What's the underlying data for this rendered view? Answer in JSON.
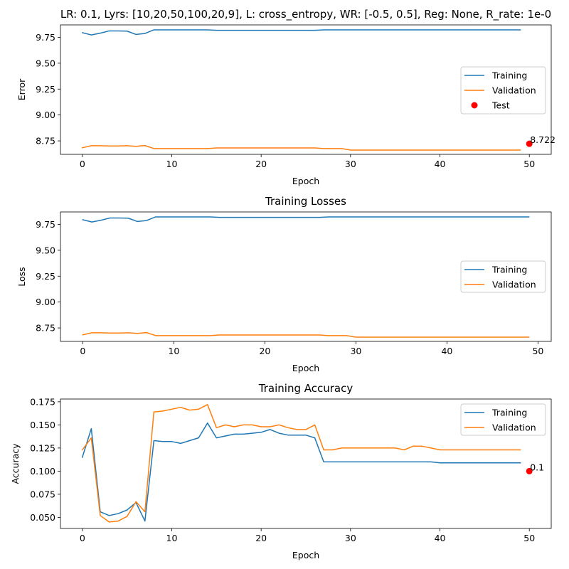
{
  "chart_data": [
    {
      "type": "line",
      "title": "LR: 0.1, Lyrs: [10,20,50,100,20,9], L: cross_entropy, WR: [-0.5, 0.5], Reg: None, R_rate: 1e-0",
      "xlabel": "Epoch",
      "ylabel": "Error",
      "xlim": [
        -2.45,
        52.45
      ],
      "ylim": [
        8.62,
        9.87
      ],
      "xticks": [
        0,
        10,
        20,
        30,
        40,
        50
      ],
      "yticks": [
        8.75,
        9.0,
        9.25,
        9.5,
        9.75
      ],
      "ytick_labels": [
        "8.75",
        "9.00",
        "9.25",
        "9.50",
        "9.75"
      ],
      "legend": "center-right",
      "grid": false,
      "x": [
        0,
        1,
        2,
        3,
        4,
        5,
        6,
        7,
        8,
        9,
        10,
        11,
        12,
        13,
        14,
        15,
        16,
        17,
        18,
        19,
        20,
        21,
        22,
        23,
        24,
        25,
        26,
        27,
        28,
        29,
        30,
        31,
        32,
        33,
        34,
        35,
        36,
        37,
        38,
        39,
        40,
        41,
        42,
        43,
        44,
        45,
        46,
        47,
        48,
        49
      ],
      "series": [
        {
          "name": "Training",
          "color": "#1f77b4",
          "values": [
            9.795,
            9.773,
            9.79,
            9.812,
            9.812,
            9.81,
            9.778,
            9.787,
            9.822,
            9.822,
            9.822,
            9.822,
            9.822,
            9.822,
            9.822,
            9.818,
            9.818,
            9.818,
            9.818,
            9.818,
            9.818,
            9.818,
            9.818,
            9.818,
            9.818,
            9.818,
            9.818,
            9.822,
            9.822,
            9.822,
            9.822,
            9.822,
            9.822,
            9.822,
            9.822,
            9.822,
            9.822,
            9.822,
            9.822,
            9.822,
            9.822,
            9.822,
            9.822,
            9.822,
            9.822,
            9.822,
            9.822,
            9.822,
            9.822,
            9.822
          ]
        },
        {
          "name": "Validation",
          "color": "#ff7f0e",
          "values": [
            8.684,
            8.703,
            8.703,
            8.701,
            8.701,
            8.703,
            8.697,
            8.705,
            8.676,
            8.676,
            8.676,
            8.676,
            8.676,
            8.676,
            8.676,
            8.682,
            8.682,
            8.682,
            8.682,
            8.682,
            8.682,
            8.682,
            8.682,
            8.682,
            8.682,
            8.682,
            8.682,
            8.676,
            8.676,
            8.676,
            8.661,
            8.661,
            8.661,
            8.661,
            8.661,
            8.661,
            8.661,
            8.661,
            8.661,
            8.661,
            8.661,
            8.661,
            8.661,
            8.661,
            8.661,
            8.661,
            8.661,
            8.661,
            8.661,
            8.661
          ]
        }
      ],
      "points": [
        {
          "name": "Test",
          "color": "#ff0000",
          "x": 50,
          "y": 8.722,
          "label": "8.722"
        }
      ]
    },
    {
      "type": "line",
      "title": "Training Losses",
      "xlabel": "Epoch",
      "ylabel": "Loss",
      "xlim": [
        -2.45,
        51.45
      ],
      "ylim": [
        8.62,
        9.87
      ],
      "xticks": [
        0,
        10,
        20,
        30,
        40,
        50
      ],
      "yticks": [
        8.75,
        9.0,
        9.25,
        9.5,
        9.75
      ],
      "ytick_labels": [
        "8.75",
        "9.00",
        "9.25",
        "9.50",
        "9.75"
      ],
      "legend": "center-right",
      "grid": false,
      "x": [
        0,
        1,
        2,
        3,
        4,
        5,
        6,
        7,
        8,
        9,
        10,
        11,
        12,
        13,
        14,
        15,
        16,
        17,
        18,
        19,
        20,
        21,
        22,
        23,
        24,
        25,
        26,
        27,
        28,
        29,
        30,
        31,
        32,
        33,
        34,
        35,
        36,
        37,
        38,
        39,
        40,
        41,
        42,
        43,
        44,
        45,
        46,
        47,
        48,
        49
      ],
      "series": [
        {
          "name": "Training",
          "color": "#1f77b4",
          "values": [
            9.795,
            9.773,
            9.79,
            9.812,
            9.812,
            9.81,
            9.778,
            9.787,
            9.822,
            9.822,
            9.822,
            9.822,
            9.822,
            9.822,
            9.822,
            9.818,
            9.818,
            9.818,
            9.818,
            9.818,
            9.818,
            9.818,
            9.818,
            9.818,
            9.818,
            9.818,
            9.818,
            9.822,
            9.822,
            9.822,
            9.822,
            9.822,
            9.822,
            9.822,
            9.822,
            9.822,
            9.822,
            9.822,
            9.822,
            9.822,
            9.822,
            9.822,
            9.822,
            9.822,
            9.822,
            9.822,
            9.822,
            9.822,
            9.822,
            9.822
          ]
        },
        {
          "name": "Validation",
          "color": "#ff7f0e",
          "values": [
            8.684,
            8.703,
            8.703,
            8.701,
            8.701,
            8.703,
            8.697,
            8.705,
            8.676,
            8.676,
            8.676,
            8.676,
            8.676,
            8.676,
            8.676,
            8.682,
            8.682,
            8.682,
            8.682,
            8.682,
            8.682,
            8.682,
            8.682,
            8.682,
            8.682,
            8.682,
            8.682,
            8.676,
            8.676,
            8.676,
            8.661,
            8.661,
            8.661,
            8.661,
            8.661,
            8.661,
            8.661,
            8.661,
            8.661,
            8.661,
            8.661,
            8.661,
            8.661,
            8.661,
            8.661,
            8.661,
            8.661,
            8.661,
            8.661,
            8.661
          ]
        }
      ]
    },
    {
      "type": "line",
      "title": "Training Accuracy",
      "xlabel": "Epoch",
      "ylabel": "Accuracy",
      "xlim": [
        -2.45,
        52.45
      ],
      "ylim": [
        0.038,
        0.178
      ],
      "xticks": [
        0,
        10,
        20,
        30,
        40,
        50
      ],
      "yticks": [
        0.05,
        0.075,
        0.1,
        0.125,
        0.15,
        0.175
      ],
      "ytick_labels": [
        "0.050",
        "0.075",
        "0.100",
        "0.125",
        "0.150",
        "0.175"
      ],
      "legend": "upper-right",
      "grid": false,
      "x": [
        0,
        1,
        2,
        3,
        4,
        5,
        6,
        7,
        8,
        9,
        10,
        11,
        12,
        13,
        14,
        15,
        16,
        17,
        18,
        19,
        20,
        21,
        22,
        23,
        24,
        25,
        26,
        27,
        28,
        29,
        30,
        31,
        32,
        33,
        34,
        35,
        36,
        37,
        38,
        39,
        40,
        41,
        42,
        43,
        44,
        45,
        46,
        47,
        48,
        49
      ],
      "series": [
        {
          "name": "Training",
          "color": "#1f77b4",
          "values": [
            0.115,
            0.146,
            0.056,
            0.052,
            0.054,
            0.058,
            0.066,
            0.046,
            0.133,
            0.132,
            0.132,
            0.13,
            0.133,
            0.136,
            0.152,
            0.136,
            0.138,
            0.14,
            0.14,
            0.141,
            0.142,
            0.145,
            0.141,
            0.139,
            0.139,
            0.139,
            0.136,
            0.11,
            0.11,
            0.11,
            0.11,
            0.11,
            0.11,
            0.11,
            0.11,
            0.11,
            0.11,
            0.11,
            0.11,
            0.11,
            0.109,
            0.109,
            0.109,
            0.109,
            0.109,
            0.109,
            0.109,
            0.109,
            0.109,
            0.109
          ]
        },
        {
          "name": "Validation",
          "color": "#ff7f0e",
          "values": [
            0.123,
            0.136,
            0.052,
            0.045,
            0.046,
            0.051,
            0.067,
            0.056,
            0.164,
            0.165,
            0.167,
            0.169,
            0.166,
            0.167,
            0.172,
            0.147,
            0.15,
            0.148,
            0.15,
            0.15,
            0.148,
            0.148,
            0.15,
            0.147,
            0.145,
            0.145,
            0.15,
            0.123,
            0.123,
            0.125,
            0.125,
            0.125,
            0.125,
            0.125,
            0.125,
            0.125,
            0.123,
            0.127,
            0.127,
            0.125,
            0.123,
            0.123,
            0.123,
            0.123,
            0.123,
            0.123,
            0.123,
            0.123,
            0.123,
            0.123
          ]
        }
      ],
      "points": [
        {
          "name": "",
          "color": "#ff0000",
          "x": 50,
          "y": 0.1,
          "label": "0.1"
        }
      ]
    }
  ]
}
